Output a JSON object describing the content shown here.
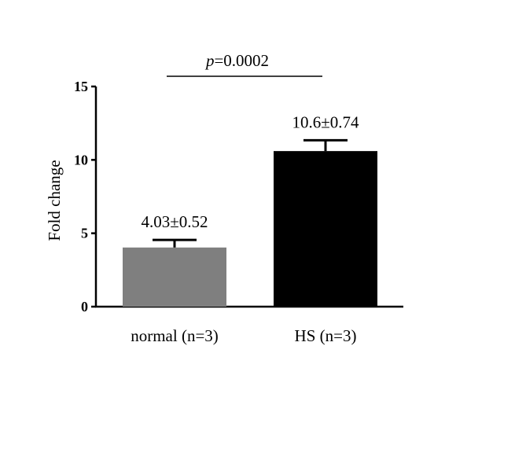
{
  "chart_data": {
    "type": "bar",
    "title": "",
    "xlabel": "",
    "ylabel": "Fold change",
    "ylim": [
      0,
      15
    ],
    "yticks": [
      "0",
      "5",
      "10",
      "15"
    ],
    "categories": [
      "normal (n=3)",
      "HS (n=3)"
    ],
    "values": [
      4.03,
      10.6
    ],
    "errors": [
      0.52,
      0.74
    ],
    "data_labels": [
      "4.03±0.52",
      "10.6±0.74"
    ],
    "bar_colors": [
      "#7f7f7f",
      "#000000"
    ],
    "grid": false,
    "annotation": {
      "p_prefix": "p",
      "p_value": "=0.0002"
    }
  }
}
